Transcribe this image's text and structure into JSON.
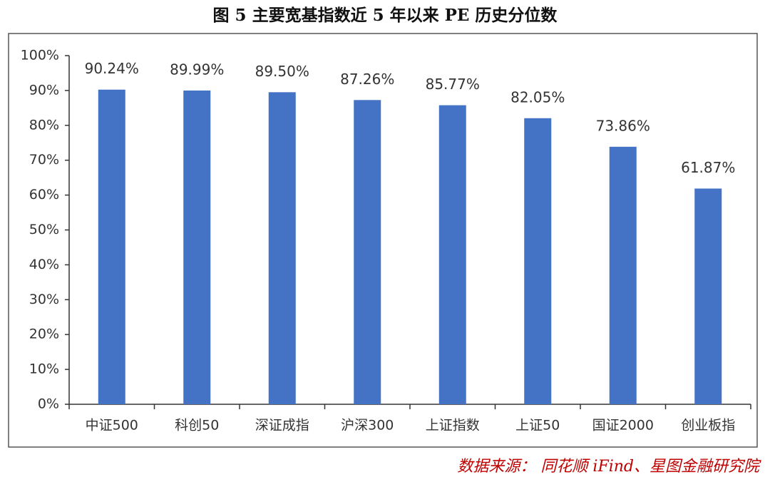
{
  "chart_data": {
    "type": "bar",
    "title": "图 5 主要宽基指数近 5 年以来 PE 历史分位数",
    "categories": [
      "中证500",
      "科创50",
      "深证成指",
      "沪深300",
      "上证指数",
      "上证50",
      "国证2000",
      "创业板指"
    ],
    "values": [
      90.24,
      89.99,
      89.5,
      87.26,
      85.77,
      82.05,
      73.86,
      61.87
    ],
    "value_labels": [
      "90.24%",
      "89.99%",
      "89.50%",
      "87.26%",
      "85.77%",
      "82.05%",
      "73.86%",
      "61.87%"
    ],
    "color": "#4472c4",
    "ylim": [
      0,
      100
    ],
    "yticks": [
      {
        "value": 0,
        "label": "0%"
      },
      {
        "value": 10,
        "label": "10%"
      },
      {
        "value": 20,
        "label": "20%"
      },
      {
        "value": 30,
        "label": "30%"
      },
      {
        "value": 40,
        "label": "40%"
      },
      {
        "value": 50,
        "label": "50%"
      },
      {
        "value": 60,
        "label": "60%"
      },
      {
        "value": 70,
        "label": "70%"
      },
      {
        "value": 80,
        "label": "80%"
      },
      {
        "value": 90,
        "label": "90%"
      },
      {
        "value": 100,
        "label": "100%"
      }
    ],
    "grid": false,
    "source": "数据来源： 同花顺 iFind、星图金融研究院"
  }
}
